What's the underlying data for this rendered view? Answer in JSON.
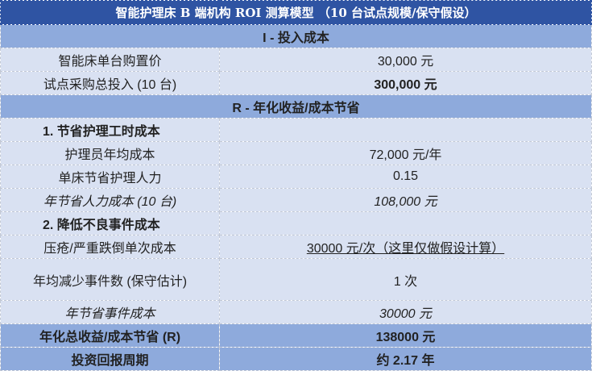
{
  "title": "智能护理床 B 端机构 ROI 测算模型  （10 台试点规模/保守假设）",
  "section_i": "I - 投入成本",
  "rows_i": [
    {
      "label": "智能床单台购置价",
      "value": "30,000 元"
    },
    {
      "label": "试点采购总投入 (10 台)",
      "value": "300,000 元"
    }
  ],
  "section_r": "R - 年化收益/成本节省",
  "sub1": "1. 节省护理工时成本",
  "rows_1": [
    {
      "label": "护理员年均成本",
      "value": "72,000 元/年"
    },
    {
      "label": "单床节省护理人力",
      "value": "0.15"
    },
    {
      "label": "年节省人力成本 (10 台)",
      "value": "108,000 元"
    }
  ],
  "sub2": "2. 降低不良事件成本",
  "rows_2": [
    {
      "label": "压疮/严重跌倒单次成本",
      "value": "30000 元/次（这里仅做假设计算）"
    },
    {
      "label": "年均减少事件数 (保守估计)",
      "value": "1 次"
    },
    {
      "label": "年节省事件成本",
      "value": "30000 元"
    }
  ],
  "total": {
    "label": "年化总收益/成本节省 (R)",
    "value": "138000 元"
  },
  "payback": {
    "label": "投资回报周期",
    "value": "约 2.17 年"
  },
  "colors": {
    "title": "#2f54a3",
    "section": "#8eaadc",
    "body": "#d9e1f2"
  }
}
